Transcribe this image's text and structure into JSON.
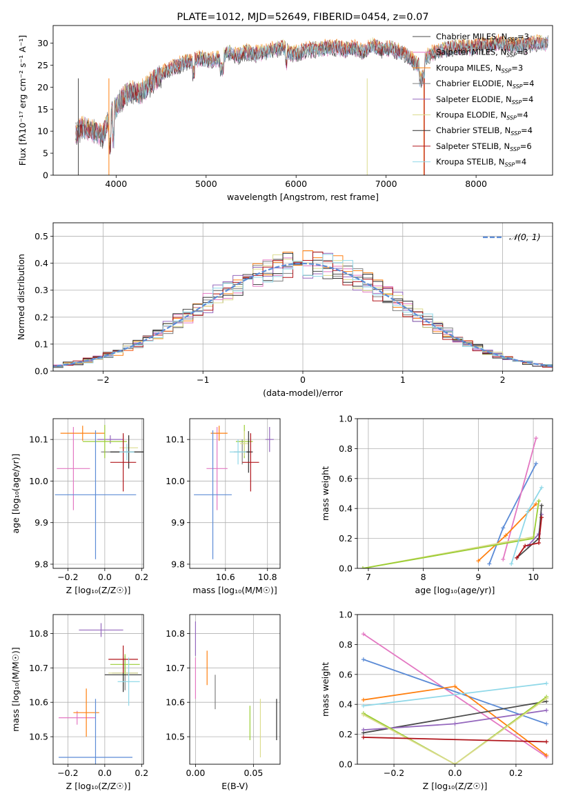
{
  "colors": [
    "#4a4a4a",
    "#e377c2",
    "#ff7f0e",
    "#7f7f7f",
    "#9467bd",
    "#dbdb8d",
    "#2b2b2b",
    "#b0141a",
    "#8fd8e8"
  ],
  "chart_data": [
    {
      "id": "spectrum",
      "type": "line",
      "title": "PLATE=1012, MJD=52649, FIBERID=0454, z=0.07",
      "xlabel": "wavelength [Angstrom, rest frame]",
      "ylabel": "Flux [fλ10⁻¹⁷ erg cm⁻² s⁻¹ A⁻¹]",
      "xlim": [
        3300,
        8850
      ],
      "ylim": [
        0,
        34
      ],
      "xticks": [
        4000,
        5000,
        6000,
        7000,
        8000
      ],
      "yticks": [
        0,
        5,
        10,
        15,
        20,
        25,
        30
      ],
      "legend_position": "top-right",
      "x": [
        3550,
        3650,
        3750,
        3850,
        3950,
        4050,
        4150,
        4250,
        4350,
        4450,
        4550,
        4650,
        4750,
        4850,
        4950,
        5050,
        5150,
        5250,
        5350,
        5450,
        5550,
        5650,
        5750,
        5850,
        5950,
        6050,
        6150,
        6250,
        6350,
        6450,
        6550,
        6650,
        6750,
        6850,
        6950,
        7050,
        7150,
        7250,
        7350,
        7450,
        7550,
        7650,
        7750,
        7850,
        7950,
        8050,
        8150,
        8250,
        8350,
        8450,
        8550,
        8650,
        8750
      ],
      "y": [
        9.5,
        11,
        10,
        9,
        14,
        17,
        19,
        18.5,
        20,
        22,
        23.5,
        24.5,
        25.5,
        26,
        26.5,
        26,
        26.5,
        28,
        27,
        28,
        27.5,
        28,
        28.5,
        29,
        27.5,
        28,
        28.5,
        28.5,
        29,
        29,
        28.5,
        29,
        28,
        29.5,
        28.5,
        29,
        28,
        27,
        25,
        27,
        28,
        28.5,
        29,
        29,
        29,
        29.5,
        29.5,
        30,
        29.5,
        29.5,
        29.5,
        30,
        30
      ],
      "series": [
        {
          "name": "Chabrier MILES, N_SSP=3"
        },
        {
          "name": "Salpeter MILES, N_SSP=3"
        },
        {
          "name": "Kroupa MILES, N_SSP=3"
        },
        {
          "name": "Chabrier ELODIE, N_SSP=4"
        },
        {
          "name": "Salpeter ELODIE, N_SSP=4"
        },
        {
          "name": "Kroupa ELODIE, N_SSP=4"
        },
        {
          "name": "Chabrier STELIB, N_SSP=4"
        },
        {
          "name": "Salpeter STELIB, N_SSP=6"
        },
        {
          "name": "Kroupa STELIB, N_SSP=4"
        }
      ]
    },
    {
      "id": "residuals",
      "type": "histogram",
      "xlabel": "(data-model)/error",
      "ylabel": "Normed distribution",
      "xlim": [
        -2.5,
        2.5
      ],
      "ylim": [
        0,
        0.55
      ],
      "xticks": [
        -2,
        -1,
        0,
        1,
        2
      ],
      "yticks": [
        0.0,
        0.1,
        0.2,
        0.3,
        0.4,
        0.5
      ],
      "bin_width": 0.1,
      "reference_curve": {
        "name": "𝒩(0, 1)",
        "mean": 0,
        "sigma": 1
      },
      "legend_position": "top-right"
    },
    {
      "id": "age_vs_Z",
      "type": "scatter",
      "xlabel": "Z [log₁₀(Z/Z☉)]",
      "ylabel": "age  [log₁₀(age/yr)]",
      "xlim": [
        -0.28,
        0.21
      ],
      "ylim": [
        9.79,
        10.15
      ],
      "xticks": [
        -0.2,
        0.0,
        0.2
      ],
      "yticks": [
        9.8,
        9.9,
        10.0,
        10.1
      ],
      "points": [
        {
          "x": 0.03,
          "xerr": 0.07,
          "y": 10.1,
          "yerr": 0.01
        },
        {
          "x": -0.17,
          "xerr": 0.09,
          "y": 10.03,
          "yerr": 0.1
        },
        {
          "x": -0.12,
          "xerr": 0.12,
          "y": 10.115,
          "yerr": 0.018
        },
        {
          "x": 0.1,
          "xerr": 0.12,
          "y": 10.07,
          "yerr": 0.04
        },
        {
          "x": 0.0,
          "xerr": 0.12,
          "y": 10.095,
          "yerr": 0.04
        },
        {
          "x": 0.13,
          "xerr": 0.05,
          "y": 10.08,
          "yerr": 0.03
        },
        {
          "x": 0.13,
          "xerr": 0.1,
          "y": 10.07,
          "yerr": 0.04
        },
        {
          "x": 0.1,
          "xerr": 0.07,
          "y": 10.045,
          "yerr": 0.07
        },
        {
          "x": -0.05,
          "xerr": 0.22,
          "y": 9.967,
          "yerr": 0.155
        },
        {
          "x": 0.12,
          "xerr": 0.04,
          "y": 10.07,
          "yerr": 0.02
        }
      ]
    },
    {
      "id": "age_vs_mass",
      "type": "scatter",
      "xlabel": "mass [log₁₀(M/M☉)]",
      "ylabel": "",
      "xlim": [
        10.43,
        10.86
      ],
      "ylim": [
        9.79,
        10.15
      ],
      "xticks": [
        10.6,
        10.8
      ],
      "yticks": [
        9.8,
        9.9,
        10.0,
        10.1
      ],
      "points": [
        {
          "x": 10.81,
          "xerr": 0.02,
          "y": 10.1,
          "yerr": 0.03
        },
        {
          "x": 10.56,
          "xerr": 0.05,
          "y": 10.03,
          "yerr": 0.1
        },
        {
          "x": 10.57,
          "xerr": 0.04,
          "y": 10.115,
          "yerr": 0.018
        },
        {
          "x": 10.68,
          "xerr": 0.04,
          "y": 10.07,
          "yerr": 0.03
        },
        {
          "x": 10.69,
          "xerr": 0.04,
          "y": 10.095,
          "yerr": 0.04
        },
        {
          "x": 10.69,
          "xerr": 0.02,
          "y": 10.09,
          "yerr": 0.03
        },
        {
          "x": 10.71,
          "xerr": 0.02,
          "y": 10.07,
          "yerr": 0.05
        },
        {
          "x": 10.72,
          "xerr": 0.04,
          "y": 10.045,
          "yerr": 0.07
        },
        {
          "x": 10.54,
          "xerr": 0.09,
          "y": 9.967,
          "yerr": 0.155
        },
        {
          "x": 10.66,
          "xerr": 0.04,
          "y": 10.07,
          "yerr": 0.03
        }
      ]
    },
    {
      "id": "weight_vs_age",
      "type": "line",
      "xlabel": "age  [log₁₀(age/yr)]",
      "ylabel": "mass weight",
      "xlim": [
        6.8,
        10.35
      ],
      "ylim": [
        0,
        1.0
      ],
      "xticks": [
        7,
        8,
        9,
        10
      ],
      "yticks": [
        0.0,
        0.2,
        0.4,
        0.6,
        0.8,
        1.0
      ],
      "lines": [
        {
          "color": "#5b8bd6",
          "x": [
            9.2,
            9.45,
            10.05
          ],
          "y": [
            0.03,
            0.27,
            0.7
          ]
        },
        {
          "color": "#e377c2",
          "x": [
            9.45,
            10.05
          ],
          "y": [
            0.06,
            0.87
          ]
        },
        {
          "color": "#ff7f0e",
          "x": [
            9.0,
            9.5,
            10.05
          ],
          "y": [
            0.05,
            0.22,
            0.43
          ]
        },
        {
          "color": "#dbdb8d",
          "x": [
            6.9,
            10.0
          ],
          "y": [
            0.0,
            0.21
          ]
        },
        {
          "color": "#9acd32",
          "x": [
            6.9,
            10.0,
            10.1
          ],
          "y": [
            0.0,
            0.2,
            0.45
          ]
        },
        {
          "color": "#9467bd",
          "x": [
            9.9,
            10.1,
            10.15
          ],
          "y": [
            0.15,
            0.23,
            0.36
          ]
        },
        {
          "color": "#4a4a4a",
          "x": [
            9.7,
            10.1,
            10.15
          ],
          "y": [
            0.07,
            0.2,
            0.42
          ]
        },
        {
          "color": "#b0141a",
          "x": [
            9.7,
            9.85,
            10.1,
            10.15
          ],
          "y": [
            0.07,
            0.15,
            0.17,
            0.34
          ]
        },
        {
          "color": "#8fd8e8",
          "x": [
            9.6,
            9.9,
            10.15
          ],
          "y": [
            0.03,
            0.38,
            0.54
          ]
        }
      ]
    },
    {
      "id": "mass_vs_Z",
      "type": "scatter",
      "xlabel": "Z [log₁₀(Z/Z☉)]",
      "ylabel": "mass [log₁₀(M/M☉)]",
      "xlim": [
        -0.28,
        0.21
      ],
      "ylim": [
        10.42,
        10.855
      ],
      "xticks": [
        -0.2,
        0.0,
        0.2
      ],
      "yticks": [
        10.5,
        10.6,
        10.7,
        10.8
      ],
      "points": [
        {
          "x": -0.02,
          "xerr": 0.12,
          "y": 10.81,
          "yerr": 0.02
        },
        {
          "x": -0.15,
          "xerr": 0.1,
          "y": 10.555,
          "yerr": 0.02
        },
        {
          "x": -0.1,
          "xerr": 0.07,
          "y": 10.57,
          "yerr": 0.07
        },
        {
          "x": 0.11,
          "xerr": 0.07,
          "y": 10.685,
          "yerr": 0.05
        },
        {
          "x": 0.11,
          "xerr": 0.08,
          "y": 10.71,
          "yerr": 0.03
        },
        {
          "x": 0.1,
          "xerr": 0.08,
          "y": 10.685,
          "yerr": 0.04
        },
        {
          "x": 0.1,
          "xerr": 0.1,
          "y": 10.68,
          "yerr": 0.05
        },
        {
          "x": 0.1,
          "xerr": 0.08,
          "y": 10.725,
          "yerr": 0.04
        },
        {
          "x": -0.05,
          "xerr": 0.2,
          "y": 10.44,
          "yerr": 0.17
        },
        {
          "x": 0.13,
          "xerr": 0.06,
          "y": 10.66,
          "yerr": 0.07
        }
      ]
    },
    {
      "id": "mass_vs_EBV",
      "type": "scatter",
      "xlabel": "E(B-V)",
      "ylabel": "",
      "xlim": [
        -0.005,
        0.073
      ],
      "ylim": [
        10.42,
        10.855
      ],
      "xticks": [
        0.0,
        0.05
      ],
      "yticks": [
        10.5,
        10.6,
        10.7,
        10.8
      ],
      "points": [
        {
          "x": 0.0,
          "xerr": 0,
          "y": 10.785,
          "yerr": 0.05
        },
        {
          "x": 0.0,
          "xerr": 0,
          "y": 10.67,
          "yerr": 0.06
        },
        {
          "x": 0.01,
          "xerr": 0,
          "y": 10.7,
          "yerr": 0.05
        },
        {
          "x": 0.017,
          "xerr": 0,
          "y": 10.63,
          "yerr": 0.05
        },
        {
          "x": 0.047,
          "xerr": 0,
          "y": 10.54,
          "yerr": 0.05
        },
        {
          "x": 0.056,
          "xerr": 0,
          "y": 10.525,
          "yerr": 0.085
        },
        {
          "x": 0.07,
          "xerr": 0,
          "y": 10.55,
          "yerr": 0.06
        }
      ]
    },
    {
      "id": "weight_vs_Z",
      "type": "line",
      "xlabel": "Z [log₁₀(Z/Z☉)]",
      "ylabel": "mass weight",
      "xlim": [
        -0.32,
        0.32
      ],
      "ylim": [
        0,
        1.0
      ],
      "xticks": [
        -0.2,
        0.0,
        0.2
      ],
      "yticks": [
        0.0,
        0.2,
        0.4,
        0.6,
        0.8,
        1.0
      ],
      "lines": [
        {
          "color": "#e377c2",
          "x": [
            -0.3,
            0.3
          ],
          "y": [
            0.87,
            0.05
          ]
        },
        {
          "color": "#5b8bd6",
          "x": [
            -0.3,
            0.3
          ],
          "y": [
            0.7,
            0.27
          ]
        },
        {
          "color": "#ff7f0e",
          "x": [
            -0.3,
            0.0,
            0.3
          ],
          "y": [
            0.43,
            0.52,
            0.06
          ]
        },
        {
          "color": "#8fd8e8",
          "x": [
            -0.3,
            0.3
          ],
          "y": [
            0.39,
            0.54
          ]
        },
        {
          "color": "#4a4a4a",
          "x": [
            -0.3,
            0.3
          ],
          "y": [
            0.21,
            0.42
          ]
        },
        {
          "color": "#9467bd",
          "x": [
            -0.3,
            0.0,
            0.3
          ],
          "y": [
            0.23,
            0.27,
            0.36
          ]
        },
        {
          "color": "#9acd32",
          "x": [
            -0.3,
            0.0,
            0.3
          ],
          "y": [
            0.34,
            0.0,
            0.45
          ]
        },
        {
          "color": "#dbdb8d",
          "x": [
            -0.3,
            0.0,
            0.3
          ],
          "y": [
            0.33,
            0.0,
            0.44
          ]
        },
        {
          "color": "#b0141a",
          "x": [
            -0.3,
            0.3
          ],
          "y": [
            0.18,
            0.15
          ]
        }
      ]
    }
  ]
}
